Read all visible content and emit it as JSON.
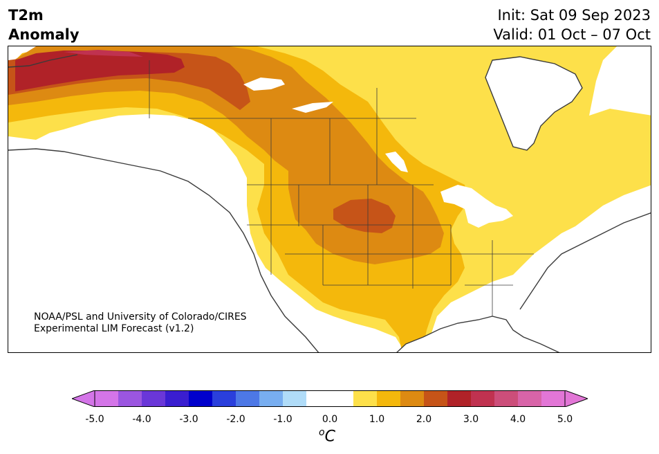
{
  "title": {
    "left_line1": "T2m",
    "left_line2": "Anomaly",
    "init": "Init: Sat 09 Sep 2023",
    "valid": "Valid: 01 Oct – 07 Oct"
  },
  "credit": {
    "line1": "NOAA/PSL and University of Colorado/CIRES",
    "line2": "Experimental LIM Forecast (v1.2)"
  },
  "colorbar": {
    "unit_symbol": "o",
    "unit_letter": "C",
    "ticks": [
      "-5.0",
      "-4.0",
      "-3.0",
      "-2.0",
      "-1.0",
      "0.0",
      "1.0",
      "2.0",
      "3.0",
      "4.0",
      "5.0"
    ],
    "colors": [
      "#d475e8",
      "#9b56e0",
      "#6a37d8",
      "#3a1ed0",
      "#0000cc",
      "#2a3fdc",
      "#4d78e6",
      "#78aef0",
      "#b0dcf8",
      "#ffffff",
      "#ffffff",
      "#fde04a",
      "#f4b80c",
      "#dd8a12",
      "#c65418",
      "#b02228",
      "#c03250",
      "#cc4e7a",
      "#d864a8",
      "#e276d6"
    ],
    "under_color": "#d475e8",
    "over_color": "#e276d6"
  },
  "map": {
    "region": "North America",
    "variable": "2-m temperature anomaly",
    "anomaly_colors": {
      "0.5_1.0": "#fde04a",
      "1.0_1.5": "#f4b80c",
      "1.5_2.0": "#dd8a12",
      "2.0_2.5": "#c65418",
      "2.5_3.0": "#b02228",
      "3.0_3.5": "#c03250"
    },
    "land_outline_color": "#3a3a3a"
  }
}
